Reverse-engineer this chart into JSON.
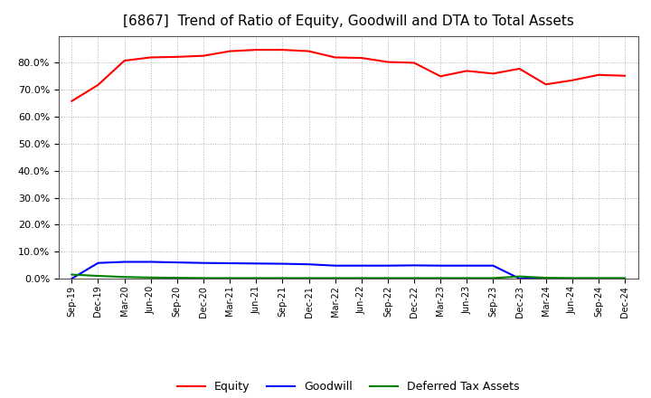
{
  "title": "[6867]  Trend of Ratio of Equity, Goodwill and DTA to Total Assets",
  "labels": [
    "Sep-19",
    "Dec-19",
    "Mar-20",
    "Jun-20",
    "Sep-20",
    "Dec-20",
    "Mar-21",
    "Jun-21",
    "Sep-21",
    "Dec-21",
    "Mar-22",
    "Jun-22",
    "Sep-22",
    "Dec-22",
    "Mar-23",
    "Jun-23",
    "Sep-23",
    "Dec-23",
    "Mar-24",
    "Jun-24",
    "Sep-24",
    "Dec-24"
  ],
  "equity": [
    0.658,
    0.718,
    0.808,
    0.82,
    0.822,
    0.826,
    0.843,
    0.848,
    0.848,
    0.843,
    0.82,
    0.818,
    0.803,
    0.8,
    0.75,
    0.77,
    0.76,
    0.778,
    0.72,
    0.735,
    0.755,
    0.752
  ],
  "goodwill": [
    0.0,
    0.058,
    0.062,
    0.062,
    0.06,
    0.058,
    0.057,
    0.056,
    0.055,
    0.053,
    0.048,
    0.048,
    0.048,
    0.049,
    0.048,
    0.048,
    0.048,
    0.0,
    0.0,
    0.0,
    0.0,
    0.0
  ],
  "dta": [
    0.015,
    0.01,
    0.006,
    0.004,
    0.003,
    0.002,
    0.002,
    0.002,
    0.002,
    0.002,
    0.002,
    0.002,
    0.002,
    0.002,
    0.002,
    0.002,
    0.002,
    0.008,
    0.003,
    0.002,
    0.002,
    0.002
  ],
  "equity_color": "#ff0000",
  "goodwill_color": "#0000ff",
  "dta_color": "#008000",
  "background_color": "#ffffff",
  "plot_background": "#ffffff",
  "grid_color": "#b0b0b0",
  "ylim": [
    0.0,
    0.9
  ],
  "yticks": [
    0.0,
    0.1,
    0.2,
    0.3,
    0.4,
    0.5,
    0.6,
    0.7,
    0.8
  ],
  "title_fontsize": 11,
  "legend_labels": [
    "Equity",
    "Goodwill",
    "Deferred Tax Assets"
  ],
  "line_width": 1.5
}
